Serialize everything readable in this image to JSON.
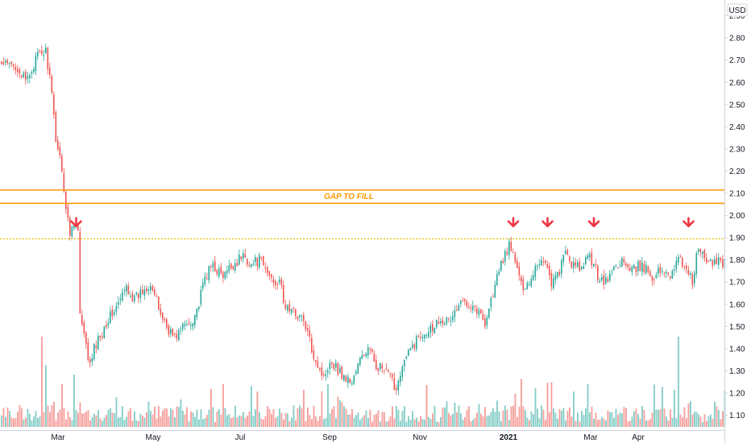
{
  "chart_data": {
    "type": "candlestick",
    "currency": "USD",
    "ylim": [
      1.05,
      2.95
    ],
    "y_ticks": [
      "2.90",
      "2.80",
      "2.70",
      "2.60",
      "2.50",
      "2.40",
      "2.30",
      "2.20",
      "2.10",
      "2.00",
      "1.90",
      "1.80",
      "1.70",
      "1.60",
      "1.50",
      "1.40",
      "1.30",
      "1.20",
      "1.10"
    ],
    "x_ticks": [
      "Mar",
      "May",
      "Jul",
      "Sep",
      "Nov",
      "2021",
      "Mar",
      "Apr"
    ],
    "grid": false,
    "horizontal_levels": [
      {
        "value": 2.115,
        "color": "#ff9800",
        "style": "solid"
      },
      {
        "value": 2.055,
        "color": "#ff9800",
        "style": "solid"
      },
      {
        "value": 1.895,
        "color": "#e6c200",
        "style": "dotted"
      }
    ],
    "annotation": "GAP TO FILL",
    "up_color": "#26a69a",
    "down_color": "#ef5350",
    "close_anchors": [
      [
        0,
        2.68
      ],
      [
        8,
        2.67
      ],
      [
        12,
        2.6
      ],
      [
        18,
        2.72
      ],
      [
        22,
        2.74
      ],
      [
        24,
        2.62
      ],
      [
        27,
        2.35
      ],
      [
        30,
        2.22
      ],
      [
        31,
        2.12
      ],
      [
        32,
        2.03
      ],
      [
        34,
        1.92
      ],
      [
        36,
        1.98
      ],
      [
        38,
        1.93
      ],
      [
        39,
        1.55
      ],
      [
        41,
        1.45
      ],
      [
        44,
        1.32
      ],
      [
        46,
        1.4
      ],
      [
        52,
        1.52
      ],
      [
        58,
        1.6
      ],
      [
        62,
        1.68
      ],
      [
        66,
        1.62
      ],
      [
        70,
        1.66
      ],
      [
        74,
        1.7
      ],
      [
        78,
        1.58
      ],
      [
        82,
        1.5
      ],
      [
        86,
        1.45
      ],
      [
        90,
        1.5
      ],
      [
        94,
        1.52
      ],
      [
        98,
        1.6
      ],
      [
        101,
        1.72
      ],
      [
        105,
        1.78
      ],
      [
        110,
        1.72
      ],
      [
        114,
        1.77
      ],
      [
        120,
        1.82
      ],
      [
        124,
        1.78
      ],
      [
        128,
        1.8
      ],
      [
        132,
        1.74
      ],
      [
        136,
        1.7
      ],
      [
        138,
        1.72
      ],
      [
        140,
        1.6
      ],
      [
        144,
        1.57
      ],
      [
        148,
        1.55
      ],
      [
        151,
        1.5
      ],
      [
        154,
        1.4
      ],
      [
        157,
        1.33
      ],
      [
        160,
        1.27
      ],
      [
        163,
        1.35
      ],
      [
        166,
        1.32
      ],
      [
        170,
        1.27
      ],
      [
        174,
        1.25
      ],
      [
        178,
        1.35
      ],
      [
        182,
        1.4
      ],
      [
        186,
        1.33
      ],
      [
        190,
        1.3
      ],
      [
        193,
        1.27
      ],
      [
        196,
        1.22
      ],
      [
        198,
        1.3
      ],
      [
        202,
        1.38
      ],
      [
        206,
        1.44
      ],
      [
        210,
        1.48
      ],
      [
        214,
        1.5
      ],
      [
        218,
        1.54
      ],
      [
        222,
        1.52
      ],
      [
        226,
        1.58
      ],
      [
        230,
        1.62
      ],
      [
        234,
        1.6
      ],
      [
        238,
        1.55
      ],
      [
        240,
        1.52
      ],
      [
        244,
        1.65
      ],
      [
        247,
        1.75
      ],
      [
        250,
        1.83
      ],
      [
        252,
        1.86
      ],
      [
        255,
        1.8
      ],
      [
        258,
        1.68
      ],
      [
        262,
        1.7
      ],
      [
        266,
        1.79
      ],
      [
        270,
        1.8
      ],
      [
        273,
        1.7
      ],
      [
        276,
        1.73
      ],
      [
        280,
        1.83
      ],
      [
        284,
        1.77
      ],
      [
        288,
        1.76
      ],
      [
        292,
        1.82
      ],
      [
        296,
        1.73
      ],
      [
        300,
        1.7
      ],
      [
        304,
        1.76
      ],
      [
        308,
        1.8
      ],
      [
        312,
        1.74
      ],
      [
        316,
        1.77
      ],
      [
        320,
        1.76
      ],
      [
        324,
        1.72
      ],
      [
        328,
        1.76
      ],
      [
        332,
        1.74
      ],
      [
        336,
        1.8
      ],
      [
        340,
        1.77
      ],
      [
        343,
        1.7
      ],
      [
        346,
        1.86
      ],
      [
        349,
        1.8
      ],
      [
        352,
        1.78
      ],
      [
        355,
        1.8
      ]
    ],
    "volume_peaks": [
      [
        20,
        0.95
      ],
      [
        22,
        0.65
      ],
      [
        30,
        0.45
      ],
      [
        36,
        0.55
      ],
      [
        104,
        0.4
      ],
      [
        110,
        0.45
      ],
      [
        162,
        0.45
      ],
      [
        255,
        0.35
      ],
      [
        291,
        0.45
      ],
      [
        336,
        0.95
      ]
    ],
    "marked_highs": [
      254,
      271,
      294,
      341
    ]
  }
}
